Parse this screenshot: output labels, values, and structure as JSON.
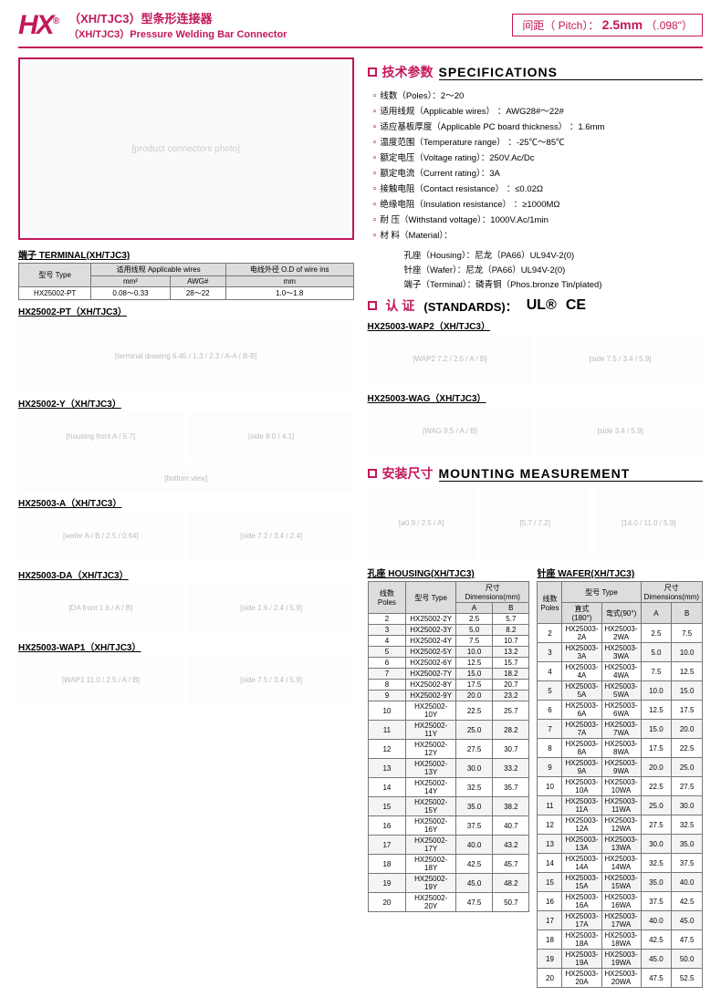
{
  "header": {
    "logo": "HX",
    "trademark": "®",
    "title_cn": "（XH/TJC3）型条形连接器",
    "title_en": "（XH/TJC3）Pressure Welding Bar Connector",
    "pitch_label": "间距（ Pitch）：",
    "pitch_value": "2.5mm",
    "pitch_inch": "（.098\"）"
  },
  "colors": {
    "accent": "#c2185b"
  },
  "specs": {
    "title_cn": "技术参数",
    "title_en": "SPECIFICATIONS",
    "items": [
      "线数（Poles）：2～20",
      "适用线规（Applicable wires） ：AWG28#～22#",
      "适应基板厚度（Applicable PC board thickness） ：1.6mm",
      "温度范围（Temperature range） ：-25℃～85℃",
      "额定电压（Voltage rating）：250V.Ac/Dc",
      "额定电流（Current rating）：3A",
      "接触电阻（Contact resistance） ：≤0.02Ω",
      "绝缘电阻（Insulation resistance） ：≥1000MΩ",
      "耐 压（Withstand voltage）：1000V.Ac/1min",
      "材 料（Material）："
    ],
    "materials": [
      "孔座（Housing）：尼龙（PA66）UL94V-2(0)",
      "针座（Wafer）：尼龙（PA66）UL94V-2(0)",
      "端子（Terminal）：磷青铜（Phos.bronze Tin/plated)"
    ]
  },
  "standards": {
    "title_cn": "认 证",
    "title_en": "(STANDARDS)：",
    "cert1": "UL®",
    "cert2": "CE"
  },
  "terminal": {
    "title": "端子  TERMINAL(XH/TJC3)",
    "header_row1": [
      "型号\nType",
      "适用线规\nApplicable wires",
      "电线外径\nO.D of wire ins"
    ],
    "header_row2": [
      "mm²",
      "AWG#",
      "mm"
    ],
    "row": [
      "HX25002-PT",
      "0.08～0.33",
      "28～22",
      "1.0～1.8"
    ]
  },
  "diagrams_left": [
    "HX25002-PT（XH/TJC3）",
    "HX25002-Y（XH/TJC3）",
    "HX25003-A（XH/TJC3）",
    "HX25003-DA（XH/TJC3）",
    "HX25003-WAP1（XH/TJC3）"
  ],
  "diagrams_right": [
    "HX25003-WAP2（XH/TJC3）",
    "HX25003-WAG（XH/TJC3）"
  ],
  "mounting": {
    "title_cn": "安装尺寸",
    "title_en": "MOUNTING MEASUREMENT"
  },
  "housing": {
    "title": "孔座  HOUSING(XH/TJC3)",
    "headers": [
      "线数\nPoles",
      "型号\nType",
      "A",
      "B"
    ],
    "dim_label": "尺寸Dimensions(mm)",
    "rows": [
      [
        "2",
        "HX25002-2Y",
        "2.5",
        "5.7"
      ],
      [
        "3",
        "HX25002-3Y",
        "5.0",
        "8.2"
      ],
      [
        "4",
        "HX25002-4Y",
        "7.5",
        "10.7"
      ],
      [
        "5",
        "HX25002-5Y",
        "10.0",
        "13.2"
      ],
      [
        "6",
        "HX25002-6Y",
        "12.5",
        "15.7"
      ],
      [
        "7",
        "HX25002-7Y",
        "15.0",
        "18.2"
      ],
      [
        "8",
        "HX25002-8Y",
        "17.5",
        "20.7"
      ],
      [
        "9",
        "HX25002-9Y",
        "20.0",
        "23.2"
      ],
      [
        "10",
        "HX25002-10Y",
        "22.5",
        "25.7"
      ],
      [
        "11",
        "HX25002-11Y",
        "25.0",
        "28.2"
      ],
      [
        "12",
        "HX25002-12Y",
        "27.5",
        "30.7"
      ],
      [
        "13",
        "HX25002-13Y",
        "30.0",
        "33.2"
      ],
      [
        "14",
        "HX25002-14Y",
        "32.5",
        "35.7"
      ],
      [
        "15",
        "HX25002-15Y",
        "35.0",
        "38.2"
      ],
      [
        "16",
        "HX25002-16Y",
        "37.5",
        "40.7"
      ],
      [
        "17",
        "HX25002-17Y",
        "40.0",
        "43.2"
      ],
      [
        "18",
        "HX25002-18Y",
        "42.5",
        "45.7"
      ],
      [
        "19",
        "HX25002-19Y",
        "45.0",
        "48.2"
      ],
      [
        "20",
        "HX25002-20Y",
        "47.5",
        "50.7"
      ]
    ]
  },
  "wafer": {
    "title": "针座  WAFER(XH/TJC3)",
    "headers": [
      "线数\nPoles",
      "直式(180°)",
      "弯式(90°)",
      "A",
      "B"
    ],
    "type_label": "型号\nType",
    "dim_label": "尺寸Dimensions(mm)",
    "rows": [
      [
        "2",
        "HX25003-2A",
        "HX25003-2WA",
        "2.5",
        "7.5"
      ],
      [
        "3",
        "HX25003-3A",
        "HX25003-3WA",
        "5.0",
        "10.0"
      ],
      [
        "4",
        "HX25003-4A",
        "HX25003-4WA",
        "7.5",
        "12.5"
      ],
      [
        "5",
        "HX25003-5A",
        "HX25003-5WA",
        "10.0",
        "15.0"
      ],
      [
        "6",
        "HX25003-6A",
        "HX25003-6WA",
        "12.5",
        "17.5"
      ],
      [
        "7",
        "HX25003-7A",
        "HX25003-7WA",
        "15.0",
        "20.0"
      ],
      [
        "8",
        "HX25003-8A",
        "HX25003-8WA",
        "17.5",
        "22.5"
      ],
      [
        "9",
        "HX25003-9A",
        "HX25003-9WA",
        "20.0",
        "25.0"
      ],
      [
        "10",
        "HX25003-10A",
        "HX25003-10WA",
        "22.5",
        "27.5"
      ],
      [
        "11",
        "HX25003-11A",
        "HX25003-11WA",
        "25.0",
        "30.0"
      ],
      [
        "12",
        "HX25003-12A",
        "HX25003-12WA",
        "27.5",
        "32.5"
      ],
      [
        "13",
        "HX25003-13A",
        "HX25003-13WA",
        "30.0",
        "35.0"
      ],
      [
        "14",
        "HX25003-14A",
        "HX25003-14WA",
        "32.5",
        "37.5"
      ],
      [
        "15",
        "HX25003-15A",
        "HX25003-15WA",
        "35.0",
        "40.0"
      ],
      [
        "16",
        "HX25003-16A",
        "HX25003-16WA",
        "37.5",
        "42.5"
      ],
      [
        "17",
        "HX25003-17A",
        "HX25003-17WA",
        "40.0",
        "45.0"
      ],
      [
        "18",
        "HX25003-18A",
        "HX25003-18WA",
        "42.5",
        "47.5"
      ],
      [
        "19",
        "HX25003-19A",
        "HX25003-19WA",
        "45.0",
        "50.0"
      ],
      [
        "20",
        "HX25003-20A",
        "HX25003-20WA",
        "47.5",
        "52.5"
      ]
    ]
  }
}
